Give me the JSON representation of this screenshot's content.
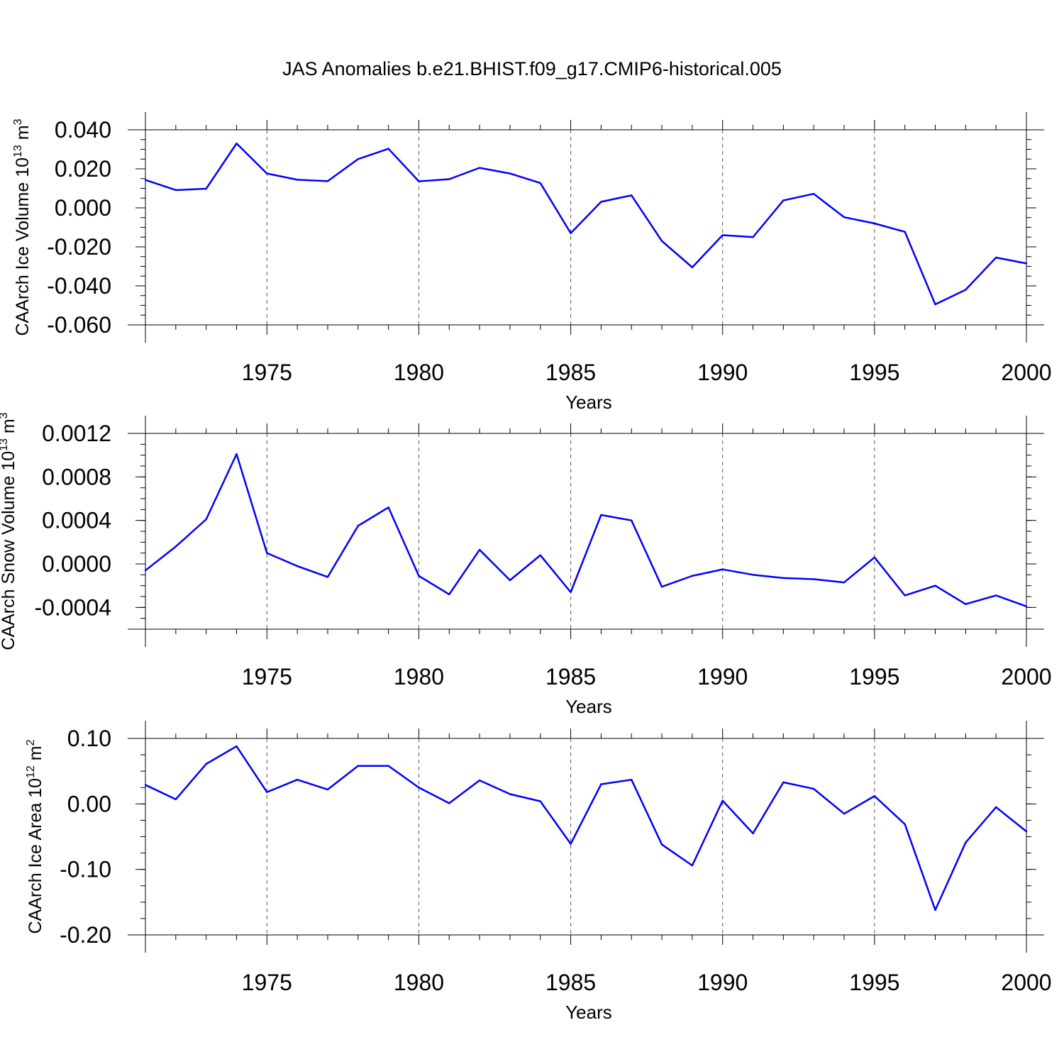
{
  "title": "JAS Anomalies b.e21.BHIST.f09_g17.CMIP6-historical.005",
  "line_color": "#0000ff",
  "chart_data": [
    {
      "type": "line",
      "xlabel": "Years",
      "ylabel": {
        "text": "CAArch Ice Volume 10",
        "sup1": "13",
        "mid": " m",
        "sup2": "3"
      },
      "xlim": [
        1971,
        2000
      ],
      "ylim": [
        -0.06,
        0.04
      ],
      "xticks": [
        1975,
        1980,
        1985,
        1990,
        1995,
        2000
      ],
      "yticks": [
        -0.06,
        -0.04,
        -0.02,
        0.0,
        0.02,
        0.04
      ],
      "ytick_labels": [
        "-0.060",
        "-0.040",
        "-0.020",
        "0.000",
        "0.020",
        "0.040"
      ],
      "y_minor_step": 0.005,
      "grid": "vertical dashed at major x ticks",
      "x": [
        1971,
        1972,
        1973,
        1974,
        1975,
        1976,
        1977,
        1978,
        1979,
        1980,
        1981,
        1982,
        1983,
        1984,
        1985,
        1986,
        1987,
        1988,
        1989,
        1990,
        1991,
        1992,
        1993,
        1994,
        1995,
        1996,
        1997,
        1998,
        1999,
        2000
      ],
      "values": [
        0.0143,
        0.0091,
        0.0098,
        0.033,
        0.0176,
        0.0144,
        0.0137,
        0.025,
        0.0303,
        0.0136,
        0.0147,
        0.0205,
        0.0176,
        0.0127,
        -0.013,
        0.0031,
        0.0064,
        -0.017,
        -0.0305,
        -0.014,
        -0.015,
        0.0038,
        0.0072,
        -0.0048,
        -0.008,
        -0.0123,
        -0.0495,
        -0.042,
        -0.0255,
        -0.0285
      ]
    },
    {
      "type": "line",
      "xlabel": "Years",
      "ylabel": {
        "text": "CAArch Snow Volume 10",
        "sup1": "13",
        "mid": " m",
        "sup2": "3"
      },
      "xlim": [
        1971,
        2000
      ],
      "ylim": [
        -0.0006,
        0.0012
      ],
      "xticks": [
        1975,
        1980,
        1985,
        1990,
        1995,
        2000
      ],
      "yticks": [
        -0.0004,
        0.0,
        0.0004,
        0.0008,
        0.0012
      ],
      "ytick_labels": [
        "-0.0004",
        "0.0000",
        "0.0004",
        "0.0008",
        "0.0012"
      ],
      "y_minor_step": 0.0001,
      "grid": "vertical dashed at major x ticks",
      "x": [
        1971,
        1972,
        1973,
        1974,
        1975,
        1976,
        1977,
        1978,
        1979,
        1980,
        1981,
        1982,
        1983,
        1984,
        1985,
        1986,
        1987,
        1988,
        1989,
        1990,
        1991,
        1992,
        1993,
        1994,
        1995,
        1996,
        1997,
        1998,
        1999,
        2000
      ],
      "values": [
        -6e-05,
        0.00016,
        0.00041,
        0.00101,
        0.0001,
        -2e-05,
        -0.00012,
        0.00035,
        0.00052,
        -0.00011,
        -0.00028,
        0.00013,
        -0.00015,
        8e-05,
        -0.00026,
        0.00045,
        0.0004,
        -0.00021,
        -0.00011,
        -5e-05,
        -0.0001,
        -0.00013,
        -0.00014,
        -0.00017,
        6e-05,
        -0.00029,
        -0.0002,
        -0.00037,
        -0.00029,
        -0.00039
      ]
    },
    {
      "type": "line",
      "xlabel": "Years",
      "ylabel": {
        "text": "CAArch Ice Area 10",
        "sup1": "12",
        "mid": " m",
        "sup2": "2"
      },
      "xlim": [
        1971,
        2000
      ],
      "ylim": [
        -0.2,
        0.1
      ],
      "xticks": [
        1975,
        1980,
        1985,
        1990,
        1995,
        2000
      ],
      "yticks": [
        -0.2,
        -0.1,
        0.0,
        0.1
      ],
      "ytick_labels": [
        "-0.20",
        "-0.10",
        "0.00",
        "0.10"
      ],
      "y_minor_step": 0.025,
      "grid": "vertical dashed at major x ticks",
      "x": [
        1971,
        1972,
        1973,
        1974,
        1975,
        1976,
        1977,
        1978,
        1979,
        1980,
        1981,
        1982,
        1983,
        1984,
        1985,
        1986,
        1987,
        1988,
        1989,
        1990,
        1991,
        1992,
        1993,
        1994,
        1995,
        1996,
        1997,
        1998,
        1999,
        2000
      ],
      "values": [
        0.029,
        0.007,
        0.061,
        0.088,
        0.018,
        0.037,
        0.022,
        0.058,
        0.058,
        0.025,
        0.001,
        0.036,
        0.015,
        0.004,
        -0.061,
        0.03,
        0.037,
        -0.062,
        -0.094,
        0.005,
        -0.045,
        0.033,
        0.023,
        -0.015,
        0.012,
        -0.031,
        -0.162,
        -0.059,
        -0.005,
        -0.042
      ]
    }
  ]
}
